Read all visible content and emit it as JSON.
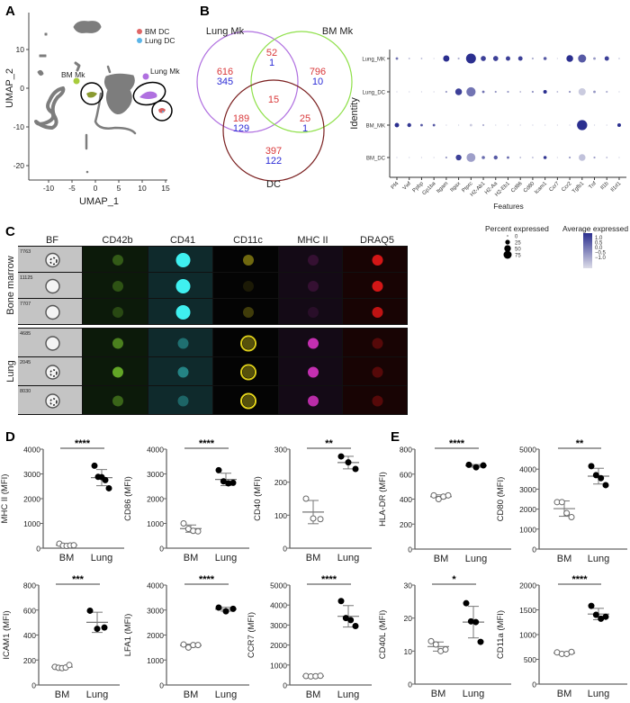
{
  "panel_labels": {
    "A": "A",
    "B": "B",
    "C": "C",
    "D": "D",
    "E": "E"
  },
  "chart_data": [
    {
      "panel": "A",
      "type": "scatter",
      "xlabel": "UMAP_1",
      "ylabel": "UMAP_2",
      "xticks": [
        -10,
        -5,
        0,
        5,
        10,
        15
      ],
      "yticks": [
        10,
        0,
        -10,
        -20
      ],
      "legend_position": "top-right",
      "legend": [
        {
          "name": "BM DC",
          "color": "#e06666"
        },
        {
          "name": "Lung DC",
          "color": "#5bb5e8"
        }
      ],
      "annotations": [
        {
          "text": "BM Mk",
          "color": "#a8cc3c"
        },
        {
          "text": "Lung Mk",
          "color": "#b070e0"
        }
      ],
      "background_color": "#808080"
    },
    {
      "panel": "B",
      "type": "venn",
      "sets": [
        {
          "name": "Lung Mk",
          "color": "#b070e0"
        },
        {
          "name": "BM Mk",
          "color": "#8fe04a"
        },
        {
          "name": "DC",
          "color": "#7a1f1f"
        }
      ],
      "up_color": "#d9383a",
      "down_color": "#2b2bd6",
      "regions": {
        "lung_only": {
          "up": "616",
          "down": "345"
        },
        "lung_bm": {
          "up": "52",
          "down": "1"
        },
        "bm_only": {
          "up": "796",
          "down": "10"
        },
        "all": {
          "up": "15"
        },
        "lung_dc": {
          "up": "189",
          "down": "129"
        },
        "bm_dc": {
          "up": "25",
          "down": "1"
        },
        "dc_only": {
          "up": "397",
          "down": "122"
        }
      }
    },
    {
      "panel": "B",
      "type": "dot",
      "xlabel": "Features",
      "ylabel": "Identity",
      "features": [
        "Pf4",
        "Vwf",
        "Ppbp",
        "Gp1ba",
        "Itgam",
        "Itgax",
        "Ptprc",
        "H2-Ab1",
        "H2-Aa",
        "H2-Eb1",
        "Cd86",
        "Cd80",
        "Icam1",
        "Ccr7",
        "Ccr2",
        "Tgfb1",
        "Tnf",
        "Il1b",
        "Il1rl1"
      ],
      "identities": [
        "Lung_MK",
        "Lung_DC",
        "BM_MK",
        "BM_DC"
      ],
      "percent_expressed": [
        [
          5,
          2,
          2,
          1,
          30,
          3,
          75,
          20,
          20,
          15,
          15,
          3,
          8,
          1,
          35,
          50,
          5,
          15,
          2
        ],
        [
          1,
          1,
          1,
          1,
          3,
          35,
          65,
          5,
          3,
          3,
          2,
          3,
          10,
          2,
          3,
          40,
          5,
          3,
          1
        ],
        [
          15,
          12,
          5,
          5,
          1,
          1,
          5,
          3,
          1,
          1,
          1,
          1,
          1,
          1,
          1,
          80,
          1,
          1,
          10
        ],
        [
          1,
          1,
          1,
          1,
          3,
          25,
          60,
          8,
          12,
          5,
          2,
          2,
          8,
          1,
          3,
          35,
          3,
          2,
          1
        ]
      ],
      "average_expressed": [
        [
          0.2,
          -0.5,
          -0.5,
          -0.8,
          1.0,
          -0.5,
          1.0,
          0.8,
          0.8,
          0.8,
          0.8,
          -0.5,
          0.5,
          -0.8,
          1.0,
          0.5,
          -0.2,
          0.8,
          -0.8
        ],
        [
          -0.8,
          -0.8,
          -0.8,
          -0.8,
          -0.3,
          0.8,
          0.2,
          0.2,
          -0.2,
          -0.2,
          -0.5,
          -0.2,
          1.0,
          -0.5,
          -0.2,
          -0.8,
          -0.2,
          -0.5,
          -0.8
        ],
        [
          1.0,
          0.9,
          0.5,
          0.5,
          -0.8,
          -0.8,
          -0.8,
          -0.5,
          -0.8,
          -0.8,
          -0.8,
          -0.8,
          -0.8,
          -0.8,
          -0.8,
          1.0,
          -0.8,
          -0.8,
          1.0
        ],
        [
          -0.8,
          -0.8,
          -0.8,
          -0.8,
          -0.3,
          0.8,
          -0.3,
          0.3,
          0.5,
          0.3,
          -0.5,
          -0.5,
          0.9,
          -0.8,
          -0.3,
          -0.7,
          -0.3,
          -0.5,
          -0.8
        ]
      ],
      "size_legend": {
        "title": "Percent expressed",
        "values": [
          "0",
          "25",
          "50",
          "75"
        ]
      },
      "color_legend": {
        "title": "Average expressed",
        "labels": [
          "1.0",
          "0.5",
          "0.0",
          "−0.5",
          "−1.0"
        ],
        "high_color": "#2b2f8f",
        "low_color": "#dcdce8"
      }
    },
    {
      "panel": "D",
      "type": "scatter",
      "groups": [
        "BM",
        "Lung"
      ],
      "plots": [
        {
          "ylabel": "MHC II (MFI)",
          "ylim": [
            0,
            4000
          ],
          "yticks": [
            "0",
            "1000",
            "2000",
            "3000",
            "4000"
          ],
          "sig": "****",
          "BM": [
            180,
            100,
            90,
            110,
            120
          ],
          "Lung": [
            3330,
            2880,
            2870,
            2750,
            2420
          ]
        },
        {
          "ylabel": "CD86 (MFI)",
          "ylim": [
            0,
            4000
          ],
          "yticks": [
            "0",
            "1000",
            "2000",
            "3000",
            "4000"
          ],
          "sig": "****",
          "BM": [
            1000,
            780,
            700,
            680
          ],
          "Lung": [
            3150,
            2700,
            2620,
            2640
          ]
        },
        {
          "ylabel": "CD40 (MFI)",
          "ylim": [
            0,
            300
          ],
          "yticks": [
            "0",
            "100",
            "200",
            "300"
          ],
          "sig": "**",
          "BM": [
            150,
            90,
            88
          ],
          "Lung": [
            278,
            260,
            240
          ]
        },
        {
          "ylabel": "ICAM1 (MFI)",
          "ylim": [
            0,
            800
          ],
          "yticks": [
            "0",
            "200",
            "400",
            "600",
            "800"
          ],
          "sig": "***",
          "BM": [
            145,
            138,
            135,
            140,
            160
          ],
          "Lung": [
            595,
            450,
            460
          ]
        },
        {
          "ylabel": "LFA1 (MFI)",
          "ylim": [
            0,
            4000
          ],
          "yticks": [
            "0",
            "1000",
            "2000",
            "3000",
            "4000"
          ],
          "sig": "****",
          "BM": [
            1620,
            1500,
            1600,
            1600
          ],
          "Lung": [
            3100,
            2950,
            3050
          ]
        },
        {
          "ylabel": "CCR7 (MFI)",
          "ylim": [
            0,
            5000
          ],
          "yticks": [
            "0",
            "1000",
            "2000",
            "3000",
            "4000",
            "5000"
          ],
          "sig": "****",
          "BM": [
            450,
            430,
            440,
            460
          ],
          "Lung": [
            4200,
            3350,
            3250,
            2950
          ]
        }
      ]
    },
    {
      "panel": "E",
      "type": "scatter",
      "groups": [
        "BM",
        "Lung"
      ],
      "plots": [
        {
          "ylabel": "HLA-DR (MFI)",
          "ylim": [
            0,
            800
          ],
          "yticks": [
            "0",
            "200",
            "400",
            "600",
            "800"
          ],
          "sig": "****",
          "BM": [
            430,
            400,
            420,
            430
          ],
          "Lung": [
            675,
            655,
            670
          ]
        },
        {
          "ylabel": "CD80 (MFI)",
          "ylim": [
            0,
            5000
          ],
          "yticks": [
            "0",
            "1000",
            "2000",
            "3000",
            "4000",
            "5000"
          ],
          "sig": "**",
          "BM": [
            2350,
            2350,
            1800,
            1600
          ],
          "Lung": [
            4150,
            3700,
            3550,
            3200
          ]
        },
        {
          "ylabel": "CD40L (MFI)",
          "ylim": [
            0,
            30
          ],
          "yticks": [
            "0",
            "10",
            "20",
            "30"
          ],
          "sig": "*",
          "BM": [
            13,
            12,
            10,
            10.5
          ],
          "Lung": [
            24.5,
            19,
            18.8,
            12.8
          ]
        },
        {
          "ylabel": "CD11a (MFI)",
          "ylim": [
            0,
            2000
          ],
          "yticks": [
            "0",
            "500",
            "1000",
            "1500",
            "2000"
          ],
          "sig": "****",
          "BM": [
            640,
            610,
            610,
            650
          ],
          "Lung": [
            1580,
            1400,
            1320,
            1360
          ]
        }
      ]
    }
  ],
  "imaging": {
    "channels": [
      {
        "name": "BF",
        "color": "#ffffff",
        "bg": "#c4c4c4"
      },
      {
        "name": "CD42b",
        "color": "#7fd630",
        "bg": "#0c1a0a"
      },
      {
        "name": "CD41",
        "color": "#3ff0f0",
        "bg": "#0f2a2c"
      },
      {
        "name": "CD11c",
        "color": "#f2e21c",
        "bg": "#040404"
      },
      {
        "name": "MHC II",
        "color": "#f038d8",
        "bg": "#140a16"
      },
      {
        "name": "DRAQ5",
        "color": "#e81818",
        "bg": "#180404"
      }
    ],
    "groups": [
      {
        "label": "Bone marrow",
        "cells": [
          {
            "id": "7763",
            "intensity": [
              1,
              0.35,
              1,
              0.45,
              0.15,
              0.9
            ]
          },
          {
            "id": "11125",
            "intensity": [
              1,
              0.3,
              1,
              0.1,
              0.15,
              0.9
            ]
          },
          {
            "id": "7707",
            "intensity": [
              1,
              0.25,
              1,
              0.25,
              0.1,
              0.8
            ]
          }
        ]
      },
      {
        "label": "Lung",
        "cells": [
          {
            "id": "4685",
            "intensity": [
              1,
              0.55,
              0.35,
              0.9,
              0.8,
              0.3
            ]
          },
          {
            "id": "2045",
            "intensity": [
              1,
              0.75,
              0.45,
              0.9,
              0.8,
              0.3
            ]
          },
          {
            "id": "8030",
            "intensity": [
              1,
              0.4,
              0.3,
              0.95,
              0.75,
              0.3
            ]
          }
        ]
      }
    ]
  }
}
